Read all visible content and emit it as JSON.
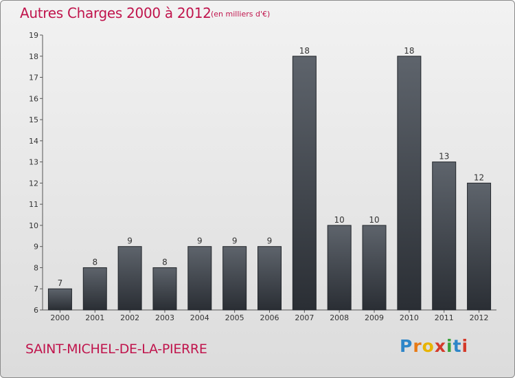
{
  "header": {
    "title": "Autres Charges 2000 à 2012",
    "subtitle": "(en milliers d'€)"
  },
  "footer": {
    "commune": "SAINT-MICHEL-DE-LA-PIERRE",
    "logo_letters": [
      "P",
      "r",
      "o",
      "x",
      "i",
      "t",
      "i"
    ],
    "logo_colors": [
      "#2e86c8",
      "#e87a16",
      "#e8b400",
      "#d43a2a",
      "#3aa23a",
      "#2e86c8",
      "#d43a2a"
    ]
  },
  "chart_data": {
    "type": "bar",
    "title": "Autres Charges 2000 à 2012",
    "subtitle": "(en milliers d'€)",
    "xlabel": "",
    "ylabel": "",
    "categories": [
      "2000",
      "2001",
      "2002",
      "2003",
      "2004",
      "2005",
      "2006",
      "2007",
      "2008",
      "2009",
      "2010",
      "2011",
      "2012"
    ],
    "values": [
      7,
      8,
      9,
      8,
      9,
      9,
      9,
      18,
      10,
      10,
      18,
      13,
      12
    ],
    "ylim": [
      6,
      19
    ],
    "yticks": [
      6,
      7,
      8,
      9,
      10,
      11,
      12,
      13,
      14,
      15,
      16,
      17,
      18,
      19
    ],
    "grid": false,
    "legend": "none",
    "bar_color_top": "#5e646c",
    "bar_color_bottom": "#2a2e34"
  }
}
